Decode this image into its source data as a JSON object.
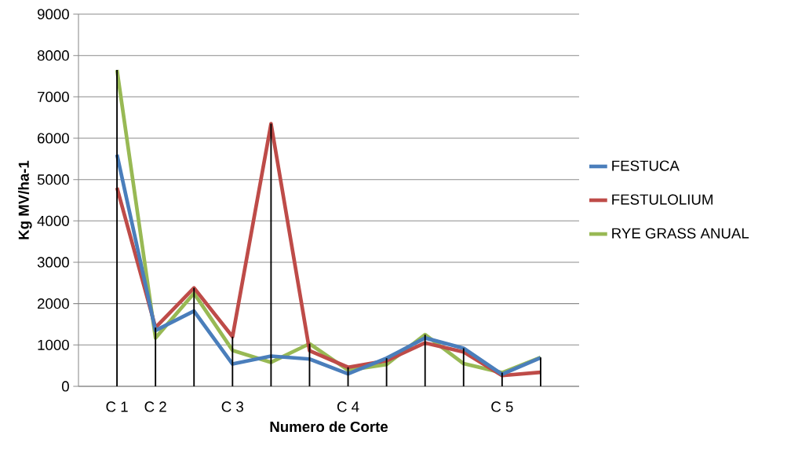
{
  "chart_data": {
    "type": "line",
    "xlabel": "Numero de Corte",
    "ylabel": "Kg MV/ha-1",
    "categories": [
      "C 1",
      "C 2",
      null,
      "C 3",
      null,
      null,
      "C 4",
      null,
      null,
      null,
      "C 5",
      null
    ],
    "series": [
      {
        "type": "bar",
        "color": "#000000",
        "values": [
          7650,
          1420,
          2380,
          1200,
          6350,
          1030,
          460,
          680,
          1250,
          920,
          330,
          700
        ]
      },
      {
        "name": "FESTUCA",
        "color": "#4a7ebb",
        "values": [
          5600,
          1350,
          1820,
          540,
          730,
          660,
          300,
          680,
          1170,
          920,
          290,
          690
        ]
      },
      {
        "name": "FESTULOLIUM",
        "color": "#be4b48",
        "values": [
          4800,
          1420,
          2380,
          1200,
          6350,
          860,
          460,
          620,
          1050,
          830,
          260,
          340
        ]
      },
      {
        "name": "RYE GRASS ANUAL",
        "color": "#98b954",
        "values": [
          7650,
          1170,
          2250,
          870,
          580,
          1030,
          390,
          530,
          1250,
          550,
          330,
          700
        ]
      }
    ],
    "ylim": [
      0,
      9000
    ],
    "yticks": [
      0,
      1000,
      2000,
      3000,
      4000,
      5000,
      6000,
      7000,
      8000,
      9000
    ],
    "grid": "y",
    "legend": "right",
    "marker": "none",
    "line_style": "solid"
  }
}
